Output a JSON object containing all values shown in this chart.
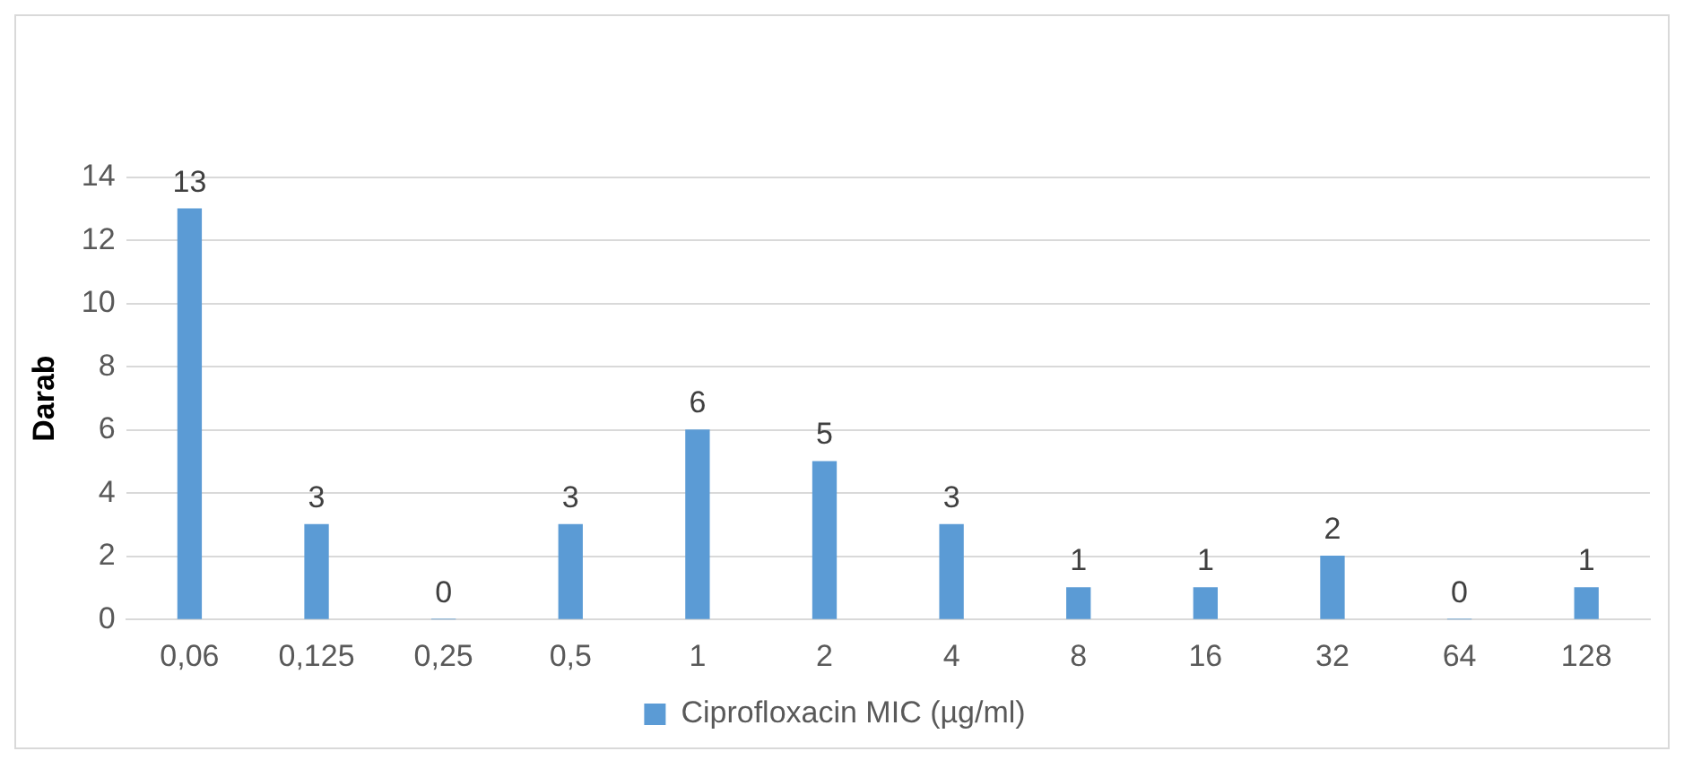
{
  "chart_data": {
    "type": "bar",
    "ylabel": "Darab",
    "categories": [
      "0,06",
      "0,125",
      "0,25",
      "0,5",
      "1",
      "2",
      "4",
      "8",
      "16",
      "32",
      "64",
      "128"
    ],
    "series": [
      {
        "name": "Ciprofloxacin MIC (µg/ml)",
        "color": "#5b9bd5",
        "values": [
          13,
          3,
          0,
          3,
          6,
          5,
          3,
          1,
          1,
          2,
          0,
          1
        ]
      }
    ],
    "ylim": [
      0,
      14
    ],
    "yticks": [
      0,
      2,
      4,
      6,
      8,
      10,
      12,
      14
    ],
    "grid": "y",
    "legend": "bottom",
    "data_labels": true
  }
}
